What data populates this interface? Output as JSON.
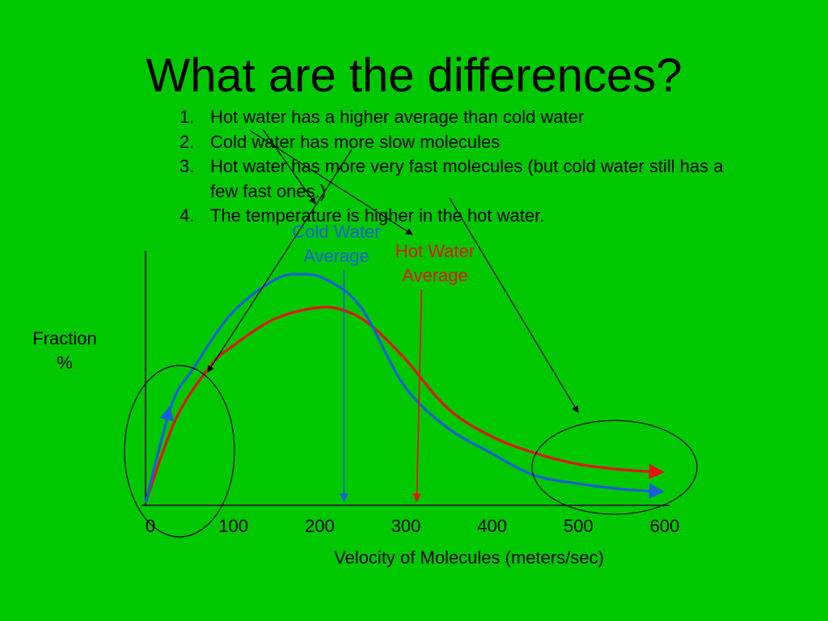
{
  "slide": {
    "title": "What are the differences?",
    "points": [
      {
        "num": "1.",
        "text": "Hot water has a higher average than cold water"
      },
      {
        "num": "2.",
        "text": "Cold water has more slow molecules"
      },
      {
        "num": "3.",
        "text": "Hot water has more very fast molecules (but cold water still has a few fast ones.)"
      },
      {
        "num": "4.",
        "text": "The temperature is higher in the hot water."
      }
    ],
    "cold_label": [
      "Cold Water",
      "Average"
    ],
    "hot_label": [
      "Hot Water",
      "Average"
    ],
    "ylabel": [
      "Fraction",
      "%"
    ],
    "xlabel": "Velocity of Molecules (meters/sec)"
  },
  "colors": {
    "background": "#00c800",
    "cold": "#1a5fd6",
    "hot": "#e0160f",
    "annotation": "#000000"
  },
  "chart_data": {
    "type": "line",
    "xlabel": "Velocity of Molecules (meters/sec)",
    "ylabel": "Fraction %",
    "xlim": [
      0,
      600
    ],
    "x_ticks": [
      0,
      100,
      200,
      300,
      400,
      500,
      600
    ],
    "ylim": [
      0,
      100
    ],
    "grid": false,
    "series": [
      {
        "name": "Cold Water",
        "color": "#1a5fd6",
        "x": [
          0,
          30,
          55,
          100,
          150,
          180,
          210,
          250,
          300,
          350,
          400,
          450,
          500,
          550,
          600
        ],
        "y": [
          0,
          35,
          48,
          68,
          80,
          82,
          80,
          70,
          42,
          27,
          18,
          10,
          7,
          5,
          4
        ]
      },
      {
        "name": "Hot Water",
        "color": "#e0160f",
        "x": [
          0,
          35,
          75,
          100,
          150,
          200,
          230,
          260,
          300,
          350,
          400,
          450,
          500,
          550,
          600
        ],
        "y": [
          0,
          30,
          49,
          56,
          66,
          70,
          69,
          64,
          52,
          34,
          24,
          18,
          14,
          12,
          11
        ]
      }
    ],
    "averages": [
      {
        "series": "Cold Water",
        "x": 230
      },
      {
        "series": "Hot Water",
        "x": 320
      }
    ]
  }
}
